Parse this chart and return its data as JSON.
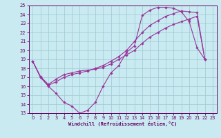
{
  "bg_color": "#c8eaf0",
  "grid_color": "#9dc8d4",
  "line_color": "#993399",
  "xlim": [
    -0.5,
    23.5
  ],
  "ylim": [
    13,
    25
  ],
  "xticks": [
    0,
    1,
    2,
    3,
    4,
    5,
    6,
    7,
    8,
    9,
    10,
    11,
    12,
    13,
    14,
    15,
    16,
    17,
    18,
    19,
    20,
    21,
    22,
    23
  ],
  "yticks": [
    13,
    14,
    15,
    16,
    17,
    18,
    19,
    20,
    21,
    22,
    23,
    24,
    25
  ],
  "xlabel": "Windchill (Refroidissement éolien,°C)",
  "curve1_x": [
    0,
    1,
    2,
    3,
    4,
    5,
    6,
    7,
    8,
    9,
    10,
    11,
    12,
    13,
    14,
    15,
    16,
    17,
    18,
    19,
    20,
    21,
    22
  ],
  "curve1_y": [
    18.8,
    17.0,
    16.0,
    15.2,
    14.2,
    13.8,
    13.0,
    13.3,
    14.2,
    16.0,
    17.5,
    18.3,
    19.8,
    20.5,
    23.9,
    24.5,
    24.8,
    24.8,
    24.7,
    24.3,
    23.2,
    20.3,
    19.0
  ],
  "curve2_x": [
    0,
    1,
    2,
    3,
    4,
    5,
    6,
    7,
    8,
    9,
    10,
    11,
    12,
    13,
    14,
    15,
    16,
    17,
    18,
    19,
    20,
    21,
    22
  ],
  "curve2_y": [
    18.8,
    17.1,
    16.2,
    16.8,
    17.3,
    17.5,
    17.7,
    17.8,
    17.9,
    18.1,
    18.5,
    19.0,
    19.5,
    20.0,
    20.8,
    21.5,
    22.0,
    22.5,
    22.9,
    23.2,
    23.5,
    23.8,
    19.0
  ],
  "curve3_x": [
    0,
    1,
    2,
    3,
    4,
    5,
    6,
    7,
    8,
    9,
    10,
    11,
    12,
    13,
    14,
    15,
    16,
    17,
    18,
    19,
    20,
    21,
    22
  ],
  "curve3_y": [
    18.8,
    17.0,
    16.1,
    16.5,
    17.0,
    17.3,
    17.5,
    17.7,
    18.0,
    18.3,
    18.8,
    19.3,
    20.0,
    21.0,
    22.0,
    22.8,
    23.3,
    23.8,
    24.1,
    24.4,
    24.3,
    24.2,
    19.0
  ],
  "tick_color": "#660066",
  "label_fontsize": 5,
  "tick_fontsize": 4.8,
  "marker": "D",
  "markersize": 1.8,
  "linewidth": 0.8
}
